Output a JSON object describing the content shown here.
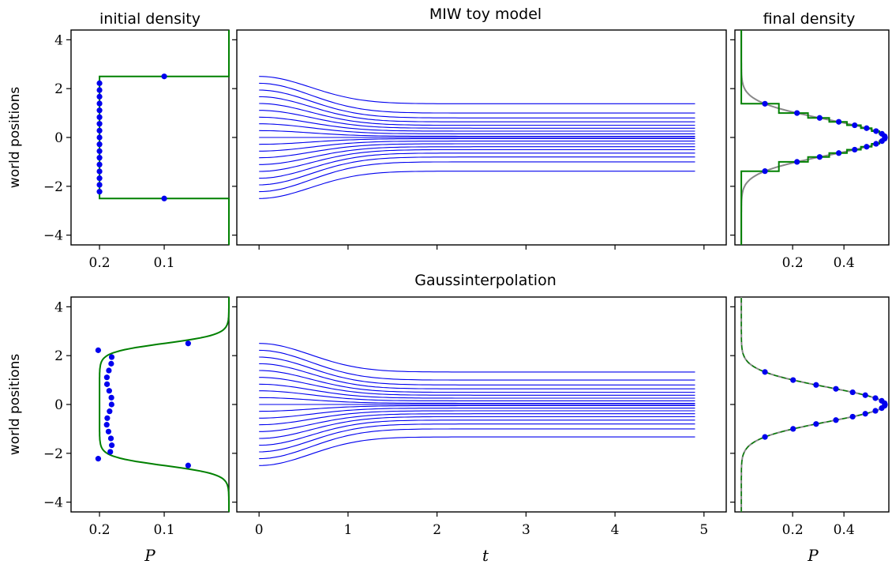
{
  "figure": {
    "row_titles": [
      "MIW toy model",
      "Gaussinterpolation"
    ],
    "left_titles": [
      "initial density",
      ""
    ],
    "right_titles": [
      "final density",
      ""
    ],
    "ylabel": "world positions",
    "left_xlabel": "P",
    "mid_xlabel": "t",
    "right_xlabel": "P",
    "y_ticks": [
      4,
      2,
      0,
      -2,
      -4
    ],
    "left_ticks": [
      0.2,
      0.1
    ],
    "right_ticks": [
      0.2,
      0.4
    ],
    "t_ticks": [
      0,
      1,
      2,
      3,
      4,
      5
    ],
    "colors": {
      "trajectory": "#0000ee",
      "dots": "#0000ee",
      "density": "#008000",
      "analytic": "#888888"
    }
  },
  "chart_data": [
    {
      "type": "line",
      "title": "MIW toy model",
      "panels": "initial density | trajectories | final density",
      "n_worlds": 19,
      "initial_positions": [
        -2.5,
        -2.22,
        -1.94,
        -1.67,
        -1.39,
        -1.11,
        -0.83,
        -0.56,
        -0.28,
        0.0,
        0.28,
        0.56,
        0.83,
        1.11,
        1.39,
        1.67,
        1.94,
        2.22,
        2.5
      ],
      "final_positions": [
        -1.38,
        -1.0,
        -0.8,
        -0.64,
        -0.5,
        -0.38,
        -0.26,
        -0.15,
        -0.05,
        0.0,
        0.05,
        0.15,
        0.26,
        0.38,
        0.5,
        0.64,
        0.8,
        1.0,
        1.38
      ],
      "t_range": [
        0,
        4.9
      ],
      "initial_density": "uniform P=0.2 on [-2.5, 2.5]",
      "final_density_peak": 0.56,
      "xlabel": "",
      "ylabel": "world positions",
      "ylim": [
        -4.4,
        4.4
      ]
    },
    {
      "type": "line",
      "title": "Gaussinterpolation",
      "panels": "initial density | trajectories | final density",
      "n_worlds": 19,
      "initial_positions": [
        -2.5,
        -2.22,
        -1.94,
        -1.67,
        -1.39,
        -1.11,
        -0.83,
        -0.56,
        -0.28,
        0.0,
        0.28,
        0.56,
        0.83,
        1.11,
        1.39,
        1.67,
        1.94,
        2.22,
        2.5
      ],
      "final_positions": [
        -1.33,
        -1.0,
        -0.8,
        -0.64,
        -0.5,
        -0.38,
        -0.26,
        -0.15,
        -0.05,
        0.0,
        0.05,
        0.15,
        0.26,
        0.38,
        0.5,
        0.64,
        0.8,
        1.0,
        1.33
      ],
      "t_range": [
        0,
        4.9
      ],
      "initial_density": "smoothed plateau P≈0.2 on [-2.5, 2.5]",
      "final_density_peak": 0.56,
      "xlabel": "t",
      "ylabel": "world positions",
      "ylim": [
        -4.4,
        4.4
      ]
    }
  ]
}
